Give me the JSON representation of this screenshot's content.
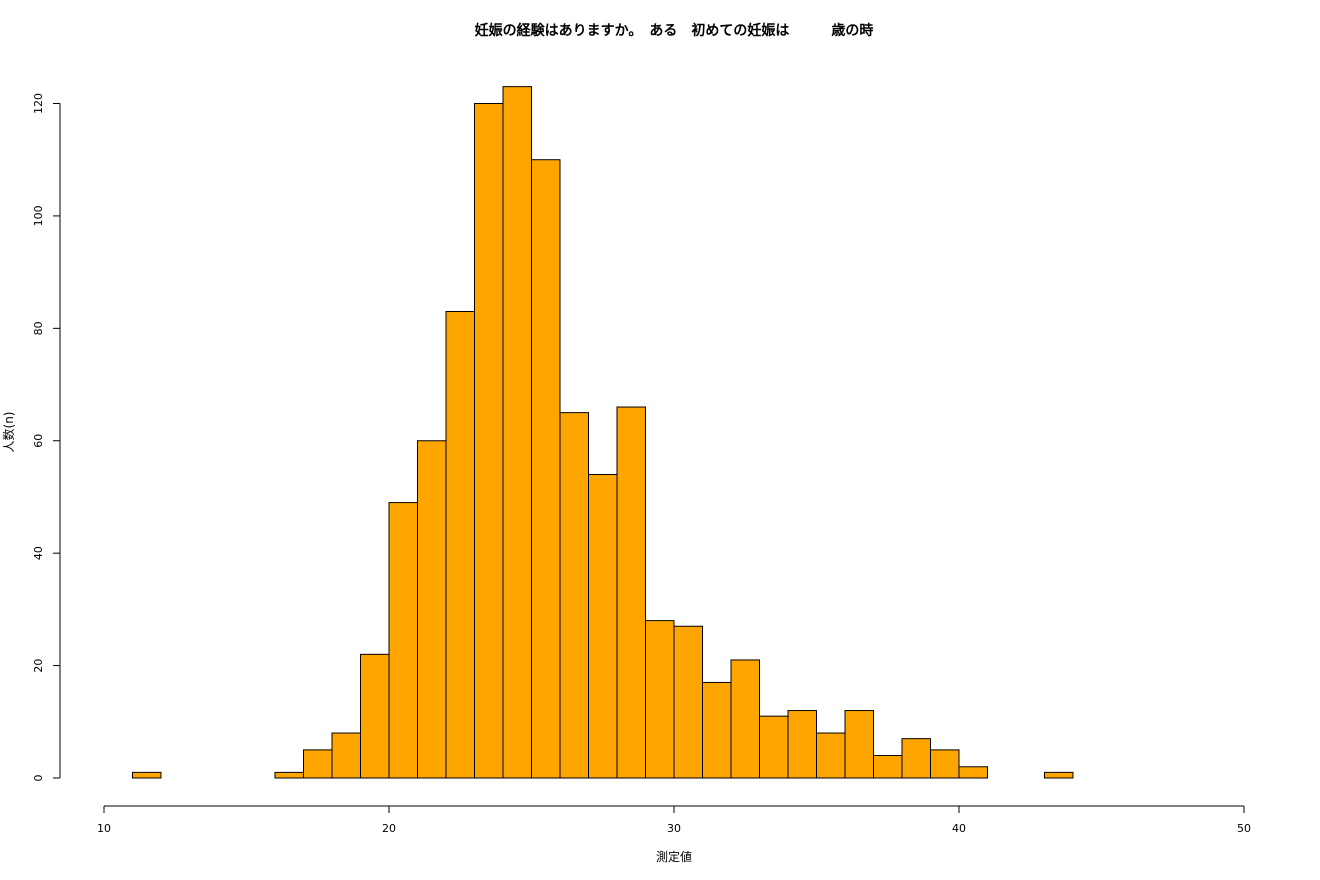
{
  "chart_data": {
    "type": "bar",
    "title": "妊娠の経験はありますか。　ある　初めての妊娠は　　　歳の時",
    "xlabel": "測定値",
    "ylabel": "人数(n)",
    "xlim": [
      10,
      50
    ],
    "ylim": [
      0,
      123
    ],
    "x_ticks": [
      10,
      20,
      30,
      40,
      50
    ],
    "y_ticks": [
      0,
      20,
      40,
      60,
      80,
      100,
      120
    ],
    "bin_width": 1,
    "bins": [
      {
        "start": 11,
        "count": 1
      },
      {
        "start": 12,
        "count": 0
      },
      {
        "start": 13,
        "count": 0
      },
      {
        "start": 14,
        "count": 0
      },
      {
        "start": 15,
        "count": 0
      },
      {
        "start": 16,
        "count": 1
      },
      {
        "start": 17,
        "count": 5
      },
      {
        "start": 18,
        "count": 8
      },
      {
        "start": 19,
        "count": 22
      },
      {
        "start": 20,
        "count": 49
      },
      {
        "start": 21,
        "count": 60
      },
      {
        "start": 22,
        "count": 83
      },
      {
        "start": 23,
        "count": 120
      },
      {
        "start": 24,
        "count": 123
      },
      {
        "start": 25,
        "count": 110
      },
      {
        "start": 26,
        "count": 65
      },
      {
        "start": 27,
        "count": 54
      },
      {
        "start": 28,
        "count": 66
      },
      {
        "start": 29,
        "count": 28
      },
      {
        "start": 30,
        "count": 27
      },
      {
        "start": 31,
        "count": 17
      },
      {
        "start": 32,
        "count": 21
      },
      {
        "start": 33,
        "count": 11
      },
      {
        "start": 34,
        "count": 12
      },
      {
        "start": 35,
        "count": 8
      },
      {
        "start": 36,
        "count": 12
      },
      {
        "start": 37,
        "count": 4
      },
      {
        "start": 38,
        "count": 7
      },
      {
        "start": 39,
        "count": 5
      },
      {
        "start": 40,
        "count": 2
      },
      {
        "start": 41,
        "count": 0
      },
      {
        "start": 42,
        "count": 0
      },
      {
        "start": 43,
        "count": 1
      }
    ],
    "bar_color": "#FFA500",
    "grid": false,
    "legend": "none"
  }
}
